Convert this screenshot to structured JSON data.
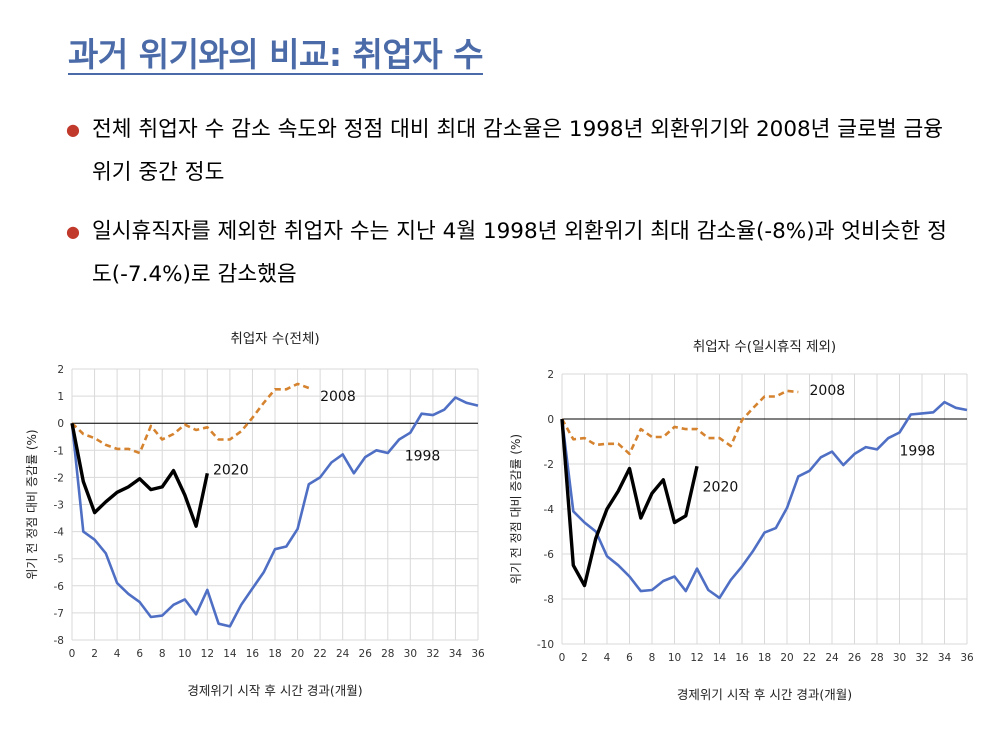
{
  "title": "과거 위기와의 비교: 취업자 수",
  "bullets": [
    "전체 취업자 수 감소 속도와 정점 대비 최대 감소율은 1998년 외환위기와 2008년 글로벌 금융위기 중간 정도",
    "일시휴직자를 제외한 취업자 수는 지난 4월 1998년 외환위기 최대 감소율(-8%)과 엇비슷한 정도(-7.4%)로 감소했음"
  ],
  "colors": {
    "series_1998": "#4f6fc4",
    "series_2008": "#d5832f",
    "series_2020": "#000000",
    "title": "#4a6aa8",
    "bullet": "#c0392b"
  },
  "chart_data": [
    {
      "type": "line",
      "title": "취업자 수(전체)",
      "xlabel": "경제위기 시작 후 시간 경과(개월)",
      "ylabel": "위기 전 정점 대비 증감률 (%)",
      "xlim": [
        0,
        36
      ],
      "ylim": [
        -8,
        2
      ],
      "xticks": [
        "0",
        "2",
        "4",
        "6",
        "8",
        "10",
        "12",
        "14",
        "16",
        "18",
        "20",
        "22",
        "24",
        "26",
        "28",
        "30",
        "32",
        "34",
        "36"
      ],
      "yticks": [
        "2",
        "1",
        "0",
        "-1",
        "-2",
        "-3",
        "-4",
        "-5",
        "-6",
        "-7",
        "-8"
      ],
      "grid": true,
      "series": [
        {
          "name": "1998",
          "style": "solid",
          "x": [
            0,
            1,
            2,
            3,
            4,
            5,
            6,
            7,
            8,
            9,
            10,
            11,
            12,
            13,
            14,
            15,
            16,
            17,
            18,
            19,
            20,
            21,
            22,
            23,
            24,
            25,
            26,
            27,
            28,
            29,
            30,
            31,
            32,
            33,
            34,
            35,
            36
          ],
          "values": [
            0,
            -4.0,
            -4.3,
            -4.8,
            -5.9,
            -6.3,
            -6.6,
            -7.15,
            -7.1,
            -6.7,
            -6.5,
            -7.05,
            -6.15,
            -7.4,
            -7.5,
            -6.7,
            -6.1,
            -5.5,
            -4.65,
            -4.55,
            -3.9,
            -2.25,
            -2.0,
            -1.45,
            -1.15,
            -1.85,
            -1.25,
            -1.0,
            -1.1,
            -0.6,
            -0.35,
            0.35,
            0.3,
            0.5,
            0.95,
            0.75,
            0.65
          ]
        },
        {
          "name": "2008",
          "style": "dashed",
          "x": [
            0,
            1,
            2,
            3,
            4,
            5,
            6,
            7,
            8,
            9,
            10,
            11,
            12,
            13,
            14,
            15,
            16,
            17,
            18,
            19,
            20,
            21
          ],
          "values": [
            0,
            -0.4,
            -0.55,
            -0.8,
            -0.95,
            -0.95,
            -1.1,
            -0.1,
            -0.6,
            -0.4,
            -0.05,
            -0.25,
            -0.15,
            -0.6,
            -0.6,
            -0.3,
            0.2,
            0.75,
            1.25,
            1.25,
            1.45,
            1.3
          ]
        },
        {
          "name": "2020",
          "style": "solid-bold",
          "x": [
            0,
            1,
            2,
            3,
            4,
            5,
            6,
            7,
            8,
            9,
            10,
            11,
            12
          ],
          "values": [
            0,
            -2.15,
            -3.3,
            -2.9,
            -2.55,
            -2.35,
            -2.05,
            -2.45,
            -2.35,
            -1.75,
            -2.65,
            -3.8,
            -1.85
          ]
        }
      ],
      "labels": [
        {
          "text": "2008",
          "x": 22,
          "y": 1.0
        },
        {
          "text": "1998",
          "x": 29.5,
          "y": -1.2
        },
        {
          "text": "2020",
          "x": 12.5,
          "y": -1.7
        }
      ]
    },
    {
      "type": "line",
      "title": "취업자 수(일시휴직 제외)",
      "xlabel": "경제위기 시작 후 시간 경과(개월)",
      "ylabel": "위기 전 정점 대비 증감률 (%)",
      "xlim": [
        0,
        36
      ],
      "ylim": [
        -10,
        2
      ],
      "xticks": [
        "0",
        "2",
        "4",
        "6",
        "8",
        "10",
        "12",
        "14",
        "16",
        "18",
        "20",
        "22",
        "24",
        "26",
        "28",
        "30",
        "32",
        "34",
        "36"
      ],
      "yticks": [
        "2",
        "0",
        "-2",
        "-4",
        "-6",
        "-8",
        "-10"
      ],
      "grid": true,
      "series": [
        {
          "name": "1998",
          "style": "solid",
          "x": [
            0,
            1,
            2,
            3,
            4,
            5,
            6,
            7,
            8,
            9,
            10,
            11,
            12,
            13,
            14,
            15,
            16,
            17,
            18,
            19,
            20,
            21,
            22,
            23,
            24,
            25,
            26,
            27,
            28,
            29,
            30,
            31,
            32,
            33,
            34,
            35,
            36
          ],
          "values": [
            0,
            -4.1,
            -4.6,
            -5.0,
            -6.1,
            -6.5,
            -7.0,
            -7.65,
            -7.6,
            -7.2,
            -7.0,
            -7.65,
            -6.65,
            -7.6,
            -7.95,
            -7.15,
            -6.55,
            -5.85,
            -5.05,
            -4.85,
            -3.95,
            -2.55,
            -2.3,
            -1.7,
            -1.45,
            -2.05,
            -1.55,
            -1.25,
            -1.35,
            -0.85,
            -0.6,
            0.2,
            0.25,
            0.3,
            0.75,
            0.5,
            0.4
          ]
        },
        {
          "name": "2008",
          "style": "dashed",
          "x": [
            0,
            1,
            2,
            3,
            4,
            5,
            6,
            7,
            8,
            9,
            10,
            11,
            12,
            13,
            14,
            15,
            16,
            17,
            18,
            19,
            20,
            21
          ],
          "values": [
            0,
            -0.9,
            -0.85,
            -1.15,
            -1.1,
            -1.1,
            -1.55,
            -0.45,
            -0.8,
            -0.8,
            -0.35,
            -0.45,
            -0.45,
            -0.85,
            -0.85,
            -1.2,
            -0.05,
            0.5,
            1.0,
            1.0,
            1.25,
            1.2
          ]
        },
        {
          "name": "2020",
          "style": "solid-bold",
          "x": [
            0,
            1,
            2,
            3,
            4,
            5,
            6,
            7,
            8,
            9,
            10,
            11,
            12
          ],
          "values": [
            0,
            -6.5,
            -7.4,
            -5.3,
            -4.0,
            -3.2,
            -2.2,
            -4.4,
            -3.3,
            -2.7,
            -4.6,
            -4.3,
            -2.1
          ]
        }
      ],
      "labels": [
        {
          "text": "2008",
          "x": 22,
          "y": 1.3
        },
        {
          "text": "1998",
          "x": 30,
          "y": -1.4
        },
        {
          "text": "2020",
          "x": 12.5,
          "y": -3.0
        }
      ]
    }
  ]
}
